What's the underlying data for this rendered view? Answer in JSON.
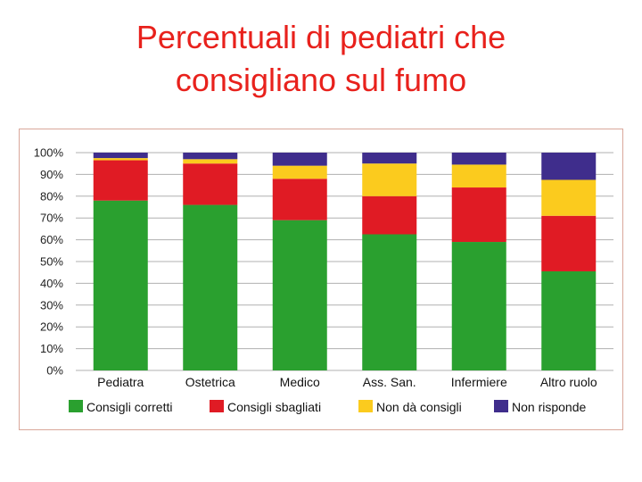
{
  "title_lines": [
    "Percentuali di pediatri che",
    "consigliano sul fumo"
  ],
  "colors": {
    "title": "#e8211c",
    "frame": "#d9a79a",
    "grid": "#b0b0b0",
    "series": [
      "#2aa02f",
      "#e01b24",
      "#fbcb1e",
      "#3f2d8c"
    ]
  },
  "chart_data": {
    "type": "bar",
    "stacked": true,
    "title": "Percentuali di pediatri che consigliano sul fumo",
    "categories": [
      "Pediatra",
      "Ostetrica",
      "Medico",
      "Ass. San.",
      "Infermiere",
      "Altro ruolo"
    ],
    "series": [
      {
        "name": "Consigli corretti",
        "values": [
          78,
          76,
          69,
          62.5,
          59,
          45.5
        ]
      },
      {
        "name": "Consigli sbagliati",
        "values": [
          18.5,
          19,
          19,
          17.5,
          25,
          25.5
        ]
      },
      {
        "name": "Non dà consigli",
        "values": [
          1,
          2,
          6,
          15,
          10.5,
          16.5
        ]
      },
      {
        "name": "Non risponde",
        "values": [
          2.5,
          3,
          6,
          5,
          5.5,
          12.5
        ]
      }
    ],
    "ylim": [
      0,
      100
    ],
    "yticks": [
      "0%",
      "10%",
      "20%",
      "30%",
      "40%",
      "50%",
      "60%",
      "70%",
      "80%",
      "90%",
      "100%"
    ],
    "grid": true,
    "legend_position": "bottom"
  }
}
